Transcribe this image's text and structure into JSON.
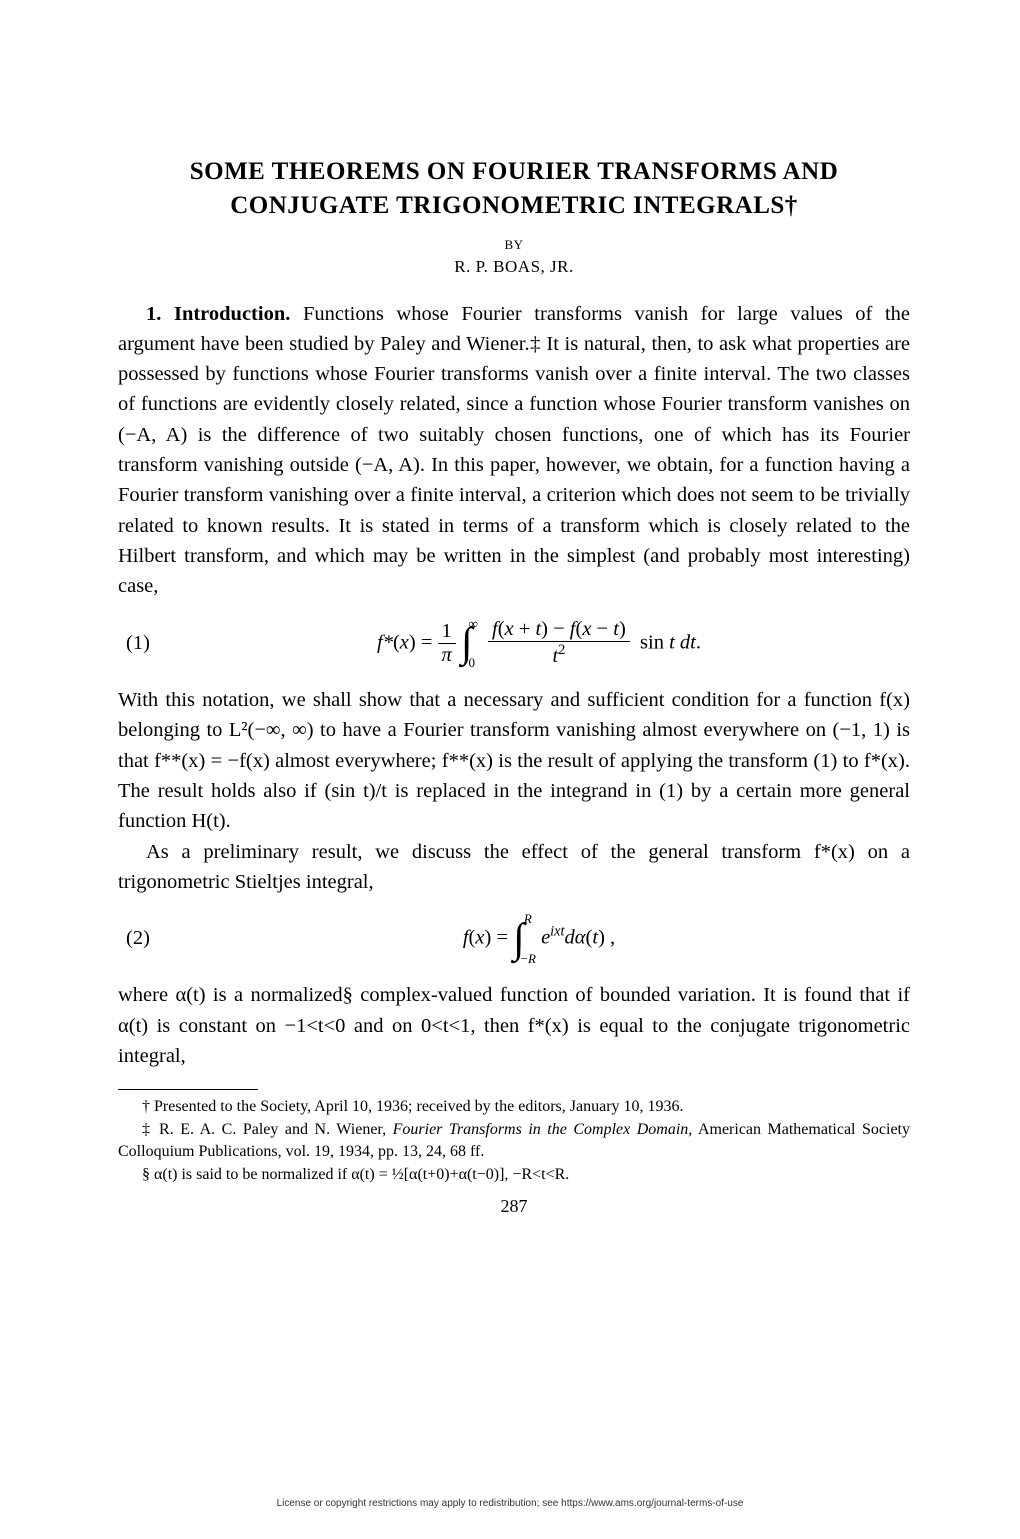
{
  "title": "SOME THEOREMS ON FOURIER TRANSFORMS AND CONJUGATE TRIGONOMETRIC INTEGRALS†",
  "by": "BY",
  "author": "R. P. BOAS, JR.",
  "section_label": "1. Introduction.",
  "para1": " Functions whose Fourier transforms vanish for large values of the argument have been studied by Paley and Wiener.‡ It is natural, then, to ask what properties are possessed by functions whose Fourier transforms vanish over a finite interval. The two classes of functions are evidently closely related, since a function whose Fourier transform vanishes on (−A, A) is the difference of two suitably chosen functions, one of which has its Fourier transform vanishing outside (−A, A). In this paper, however, we obtain, for a function having a Fourier transform vanishing over a finite interval, a criterion which does not seem to be trivially related to known results. It is stated in terms of a transform which is closely related to the Hilbert transform, and which may be written in the simplest (and probably most interesting) case,",
  "eq1_num": "(1)",
  "para2": "With this notation, we shall show that a necessary and sufficient condition for a function f(x) belonging to L²(−∞, ∞) to have a Fourier transform vanishing almost everywhere on (−1, 1) is that f**(x) = −f(x) almost everywhere; f**(x) is the result of applying the transform (1) to f*(x). The result holds also if (sin t)/t is replaced in the integrand in (1) by a certain more general function H(t).",
  "para3": "As a preliminary result, we discuss the effect of the general transform f*(x) on a trigonometric Stieltjes integral,",
  "eq2_num": "(2)",
  "para4": "where α(t) is a normalized§ complex-valued function of bounded variation. It is found that if α(t) is constant on −1<t<0 and on 0<t<1, then f*(x) is equal to the conjugate trigonometric integral,",
  "footnote1": "† Presented to the Society, April 10, 1936; received by the editors, January 10, 1936.",
  "footnote2_a": "‡ R. E. A. C. Paley and N. Wiener, ",
  "footnote2_b": "Fourier Transforms in the Complex Domain,",
  "footnote2_c": " American Mathematical Society Colloquium Publications, vol. 19, 1934, pp. 13, 24, 68 ff.",
  "footnote3": "§ α(t) is said to be normalized if α(t) = ½[α(t+0)+α(t−0)], −R<t<R.",
  "page_num": "287",
  "license": "License or copyright restrictions may apply to redistribution; see https://www.ams.org/journal-terms-of-use"
}
